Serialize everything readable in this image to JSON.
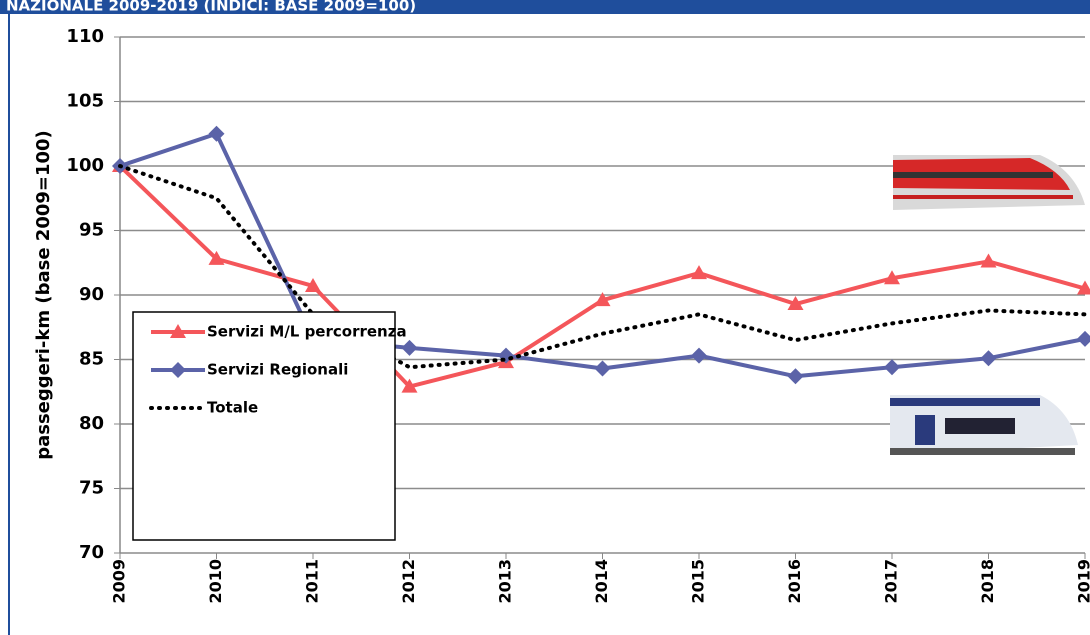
{
  "chart_data": {
    "type": "line",
    "title": "NAZIONALE 2009-2019 (INDICI: BASE 2009=100)",
    "y_label": "passeggeri-km (base 2009=100)",
    "x": [
      "2009",
      "2010",
      "2011",
      "2012",
      "2013",
      "2014",
      "2015",
      "2016",
      "2017",
      "2018",
      "2019"
    ],
    "series": [
      {
        "name": "Servizi M/L percorrenza",
        "color": "#f4565a",
        "marker": "triangle",
        "style": "solid",
        "values": [
          100,
          92.8,
          90.7,
          82.9,
          84.8,
          89.6,
          91.7,
          89.3,
          91.3,
          92.6,
          90.5
        ]
      },
      {
        "name": "Servizi Regionali",
        "color": "#5b63a8",
        "marker": "diamond",
        "style": "solid",
        "values": [
          100,
          102.5,
          86.6,
          85.9,
          85.3,
          84.3,
          85.3,
          83.7,
          84.4,
          85.1,
          86.6
        ]
      },
      {
        "name": "Totale",
        "color": "#000000",
        "marker": "none",
        "style": "dotted",
        "values": [
          100,
          97.5,
          88.5,
          84.4,
          85.0,
          87.0,
          88.5,
          86.5,
          87.8,
          88.8,
          88.5
        ]
      }
    ],
    "ylim": [
      70,
      110
    ],
    "yticks": [
      70,
      75,
      80,
      85,
      90,
      95,
      100,
      105,
      110
    ],
    "grid": true,
    "legend": "lower left"
  }
}
